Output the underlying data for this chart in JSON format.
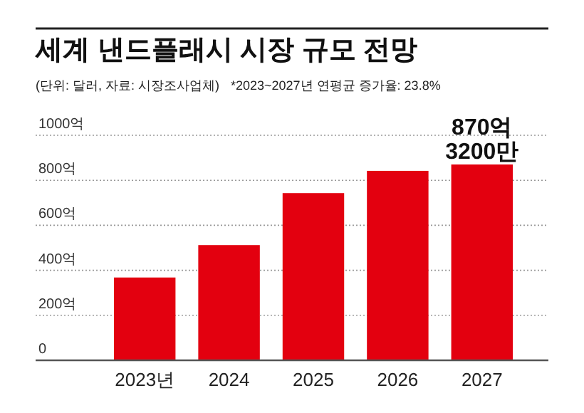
{
  "chart_data": {
    "type": "bar",
    "title": "세계 낸드플래시 시장 규모 전망",
    "subtitle": "(단위: 달러, 자료: 시장조사업체)",
    "annotations": [
      "*2023~2027년 연평균 증가율: 23.8%",
      {
        "text": "870억\n3200만",
        "x": "2027",
        "y": 870.32
      }
    ],
    "categories": [
      "2023년",
      "2024",
      "2025",
      "2026",
      "2027"
    ],
    "values": [
      368,
      512,
      743,
      842,
      870.32
    ],
    "color": "#e3000f",
    "ylim": [
      0,
      1000
    ],
    "yticks": [
      {
        "value": 0,
        "label": "0"
      },
      {
        "value": 200,
        "label": "200억"
      },
      {
        "value": 400,
        "label": "400억"
      },
      {
        "value": 600,
        "label": "600억"
      },
      {
        "value": 800,
        "label": "800억"
      },
      {
        "value": 1000,
        "label": "1000억"
      }
    ],
    "grid": "y"
  }
}
